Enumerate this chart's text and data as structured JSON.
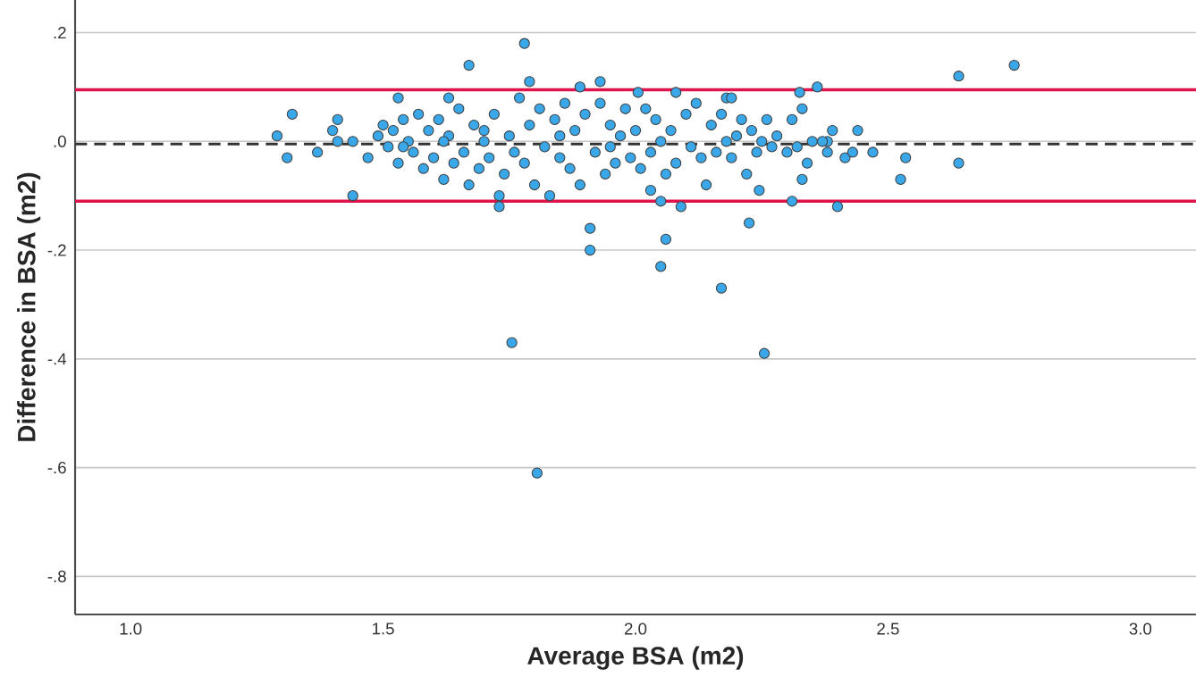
{
  "chart_data": {
    "type": "scatter",
    "xlabel": "Average BSA (m2)",
    "ylabel": "Difference in BSA (m2)",
    "xlim": [
      0.89,
      3.11
    ],
    "ylim": [
      -0.87,
      0.26
    ],
    "xticks": [
      {
        "value": 1,
        "label": "1.0"
      },
      {
        "value": 1.5,
        "label": "1.5"
      },
      {
        "value": 2,
        "label": "2.0"
      },
      {
        "value": 2.5,
        "label": "2.5"
      },
      {
        "value": 3,
        "label": "3.0"
      }
    ],
    "yticks": [
      {
        "value": 0.2,
        "label": ".2"
      },
      {
        "value": 0,
        "label": ".0"
      },
      {
        "value": -0.2,
        "label": "-.2"
      },
      {
        "value": -0.4,
        "label": "-.4"
      },
      {
        "value": -0.6,
        "label": "-.6"
      },
      {
        "value": -0.8,
        "label": "-.8"
      }
    ],
    "grid": "y",
    "marker": "circle",
    "ref_lines": [
      {
        "axis": "y",
        "value": 0.095,
        "color": "#e0144c",
        "line_style": "solid"
      },
      {
        "axis": "y",
        "value": -0.11,
        "color": "#e0144c",
        "line_style": "solid"
      },
      {
        "axis": "y",
        "value": -0.005,
        "color": "#333333",
        "line_style": "dashed"
      }
    ],
    "series": [
      {
        "color": "#3aa8e8",
        "x": [
          1.29,
          1.31,
          1.32,
          1.37,
          1.4,
          1.41,
          1.41,
          1.44,
          1.44,
          1.47,
          1.67,
          1.78,
          1.79,
          1.53,
          1.63,
          1.73,
          1.73,
          1.755,
          1.805,
          1.91,
          1.91,
          1.89,
          1.93,
          2.005,
          2.03,
          2.05,
          2.05,
          2.06,
          2.08,
          2.09,
          2.14,
          2.17,
          2.18,
          2.19,
          2.225,
          2.245,
          2.255,
          2.31,
          2.325,
          2.33,
          2.36,
          2.39,
          2.4,
          2.415,
          2.43,
          2.44,
          2.47,
          2.525,
          2.535,
          2.64,
          2.64,
          2.75,
          2.38,
          2.37,
          2.35,
          2.38,
          2.34,
          1.49,
          1.5,
          1.51,
          1.52,
          1.53,
          1.54,
          1.55,
          1.56,
          1.57,
          1.58,
          1.59,
          1.6,
          1.61,
          1.62,
          1.63,
          1.64,
          1.65,
          1.66,
          1.67,
          1.68,
          1.69,
          1.7,
          1.71,
          1.72,
          1.74,
          1.75,
          1.76,
          1.77,
          1.78,
          1.79,
          1.8,
          1.81,
          1.82,
          1.83,
          1.84,
          1.85,
          1.86,
          1.87,
          1.88,
          1.89,
          1.9,
          1.92,
          1.93,
          1.94,
          1.95,
          1.96,
          1.97,
          1.98,
          1.99,
          2.0,
          2.01,
          2.02,
          2.03,
          2.04,
          2.06,
          2.07,
          2.08,
          2.1,
          2.11,
          2.12,
          2.13,
          2.15,
          2.16,
          2.17,
          2.19,
          2.2,
          2.21,
          2.22,
          2.23,
          2.24,
          2.26,
          2.27,
          2.28,
          2.3,
          2.31,
          2.32,
          2.33,
          1.54,
          1.62,
          1.7,
          1.85,
          1.95,
          2.05,
          2.18,
          2.25
        ],
        "values": [
          0.01,
          -0.03,
          0.05,
          -0.02,
          0.02,
          0.04,
          0.0,
          -0.1,
          0.0,
          -0.03,
          0.14,
          0.18,
          0.11,
          0.08,
          0.08,
          -0.12,
          -0.1,
          -0.37,
          -0.61,
          -0.16,
          -0.2,
          0.1,
          0.11,
          0.09,
          -0.09,
          -0.11,
          -0.23,
          -0.18,
          0.09,
          -0.12,
          -0.08,
          -0.27,
          0.08,
          0.08,
          -0.15,
          -0.09,
          -0.39,
          -0.11,
          0.09,
          -0.07,
          0.1,
          0.02,
          -0.12,
          -0.03,
          -0.02,
          0.02,
          -0.02,
          -0.07,
          -0.03,
          0.12,
          -0.04,
          0.14,
          0.0,
          0.0,
          0.0,
          -0.02,
          -0.04,
          0.01,
          0.03,
          -0.01,
          0.02,
          -0.04,
          0.04,
          0.0,
          -0.02,
          0.05,
          -0.05,
          0.02,
          -0.03,
          0.04,
          -0.07,
          0.01,
          -0.04,
          0.06,
          -0.02,
          -0.08,
          0.03,
          -0.05,
          0.02,
          -0.03,
          0.05,
          -0.06,
          0.01,
          -0.02,
          0.08,
          -0.04,
          0.03,
          -0.08,
          0.06,
          -0.01,
          -0.1,
          0.04,
          -0.03,
          0.07,
          -0.05,
          0.02,
          -0.08,
          0.05,
          -0.02,
          0.07,
          -0.06,
          0.03,
          -0.04,
          0.01,
          0.06,
          -0.03,
          0.02,
          -0.05,
          0.06,
          -0.02,
          0.04,
          -0.06,
          0.02,
          -0.04,
          0.05,
          -0.01,
          0.07,
          -0.03,
          0.03,
          -0.02,
          0.05,
          -0.03,
          0.01,
          0.04,
          -0.06,
          0.02,
          -0.02,
          0.04,
          -0.01,
          0.01,
          -0.02,
          0.04,
          -0.01,
          0.06,
          -0.01,
          0.0,
          0.0,
          0.01,
          -0.01,
          0.0,
          0.0,
          0.0
        ]
      }
    ]
  }
}
